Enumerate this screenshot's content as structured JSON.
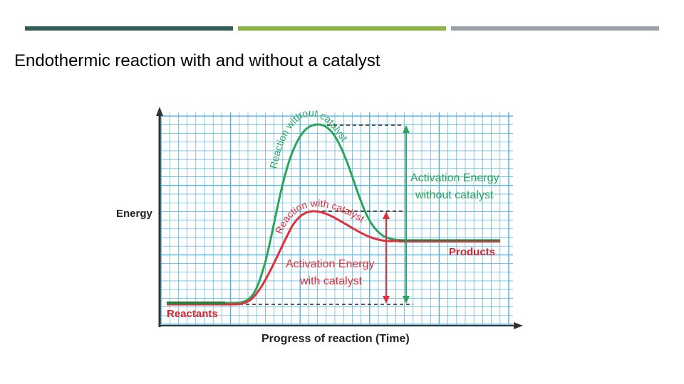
{
  "slide": {
    "title": "Endothermic reaction with and without a catalyst",
    "accent_bars": [
      "#2f5f56",
      "#8db544",
      "#9aa2a8"
    ]
  },
  "diagram": {
    "y_axis_label": "Energy",
    "x_axis_label": "Progress of reaction (Time)",
    "curve_without_catalyst_label": "Reaction without catalyst",
    "curve_with_catalyst_label": "Reaction with catalyst",
    "activation_without_line1": "Activation Energy",
    "activation_without_line2": "without catalyst",
    "activation_with_line1": "Activation Energy",
    "activation_with_line2": "with catalyst",
    "reactants_label": "Reactants",
    "products_label": "Products",
    "colors": {
      "grid": "#4fb0e0",
      "without_catalyst": "#2aa45a",
      "with_catalyst": "#e0303a",
      "reactants_line": "#2e7d3e",
      "products_line": "#2e7d3e",
      "axis": "#333333"
    }
  }
}
